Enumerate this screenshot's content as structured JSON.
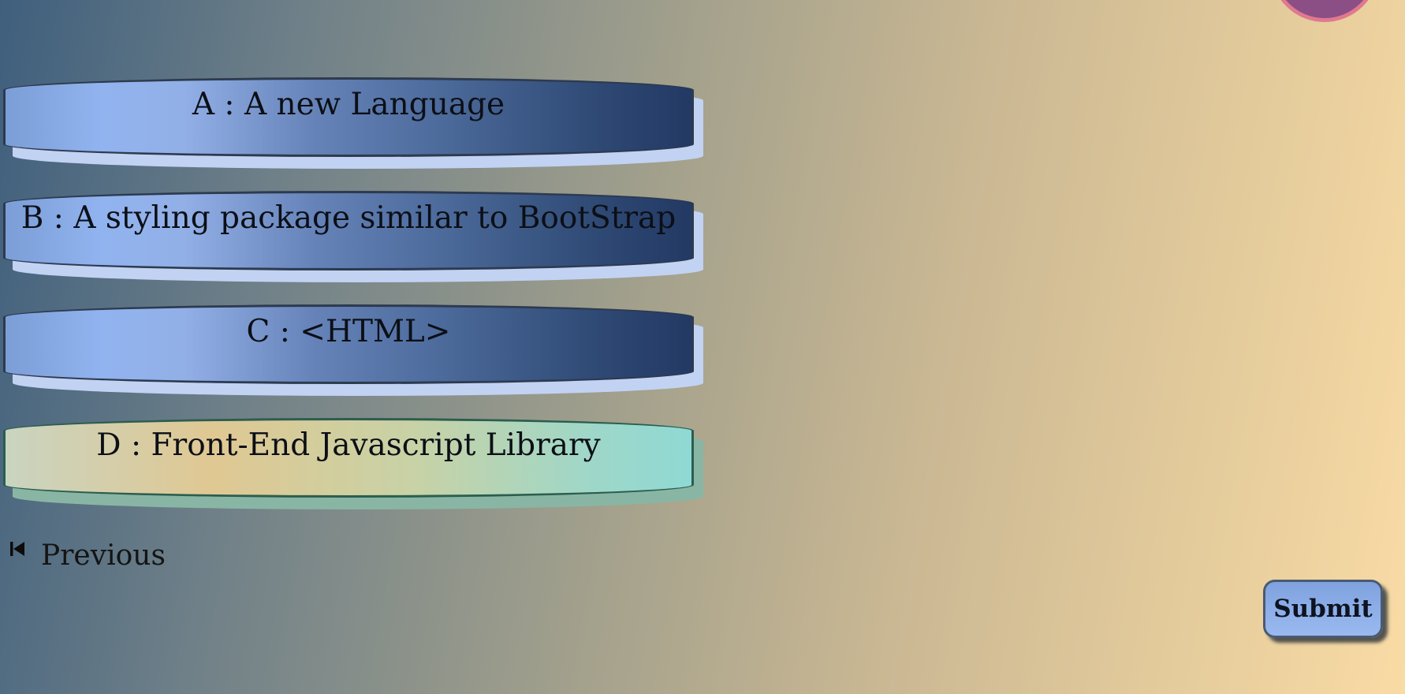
{
  "options": [
    {
      "label": "A : A new Language",
      "selected": false
    },
    {
      "label": "B : A styling package similar to BootStrap",
      "selected": false
    },
    {
      "label": "C : <HTML>",
      "selected": false
    },
    {
      "label": "D : Front-End Javascript Library",
      "selected": true
    }
  ],
  "navigation": {
    "previous_label": "Previous",
    "previous_icon": "skip-previous-icon"
  },
  "actions": {
    "submit_label": "Submit"
  },
  "colors": {
    "option_default_end": "#223963",
    "option_default_start": "#91b3ef",
    "option_selected_start": "#e0c893",
    "option_selected_end": "#8fd9d4",
    "submit_bg": "#8fb0ea",
    "avatar": "#8b4f86"
  }
}
